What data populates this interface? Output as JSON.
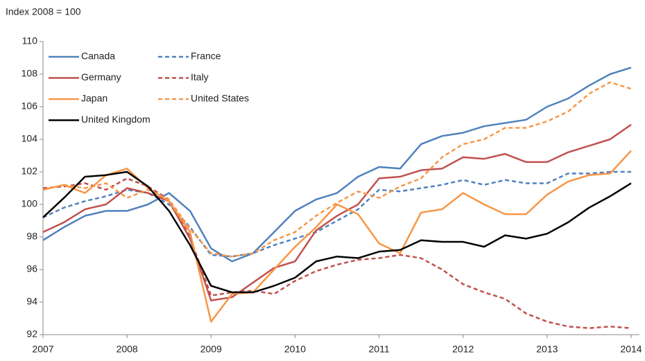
{
  "chart_data": {
    "type": "line",
    "y_label": "Index 2008 = 100",
    "x": [
      2007,
      2007.25,
      2007.5,
      2007.75,
      2008,
      2008.25,
      2008.5,
      2008.75,
      2009,
      2009.25,
      2009.5,
      2009.75,
      2010,
      2010.25,
      2010.5,
      2010.75,
      2011,
      2011.25,
      2011.5,
      2011.75,
      2012,
      2012.25,
      2012.5,
      2012.75,
      2013,
      2013.25,
      2013.5,
      2013.75,
      2014
    ],
    "xlim": [
      2007,
      2014
    ],
    "xticks": [
      2007,
      2008,
      2009,
      2010,
      2011,
      2012,
      2013,
      2014
    ],
    "ylim": [
      92,
      110
    ],
    "yticks": [
      92,
      94,
      96,
      98,
      100,
      102,
      104,
      106,
      108,
      110
    ],
    "grid": false,
    "legend": "top-left",
    "series": [
      {
        "name": "Canada",
        "color": "#4f81bd",
        "dashed": false,
        "values": [
          97.8,
          98.6,
          99.3,
          99.6,
          99.6,
          100.0,
          100.7,
          99.6,
          97.3,
          96.5,
          97.0,
          98.3,
          99.6,
          100.3,
          100.7,
          101.7,
          102.3,
          102.2,
          103.7,
          104.2,
          104.4,
          104.8,
          105.0,
          105.2,
          106.0,
          106.5,
          107.3,
          108.0,
          108.4
        ]
      },
      {
        "name": "France",
        "color": "#4f81bd",
        "dashed": true,
        "values": [
          99.2,
          99.8,
          100.2,
          100.5,
          100.9,
          100.7,
          100.0,
          98.6,
          96.9,
          96.8,
          97.0,
          97.5,
          97.9,
          98.3,
          99.0,
          99.7,
          100.9,
          100.8,
          101.0,
          101.2,
          101.5,
          101.2,
          101.5,
          101.3,
          101.3,
          101.9,
          101.9,
          102.0,
          102.0
        ]
      },
      {
        "name": "Germany",
        "color": "#c0504d",
        "dashed": false,
        "values": [
          98.3,
          98.9,
          99.7,
          100.0,
          101.0,
          100.7,
          100.2,
          97.9,
          94.1,
          94.3,
          95.2,
          96.1,
          96.5,
          98.4,
          99.3,
          100.0,
          101.6,
          101.7,
          102.1,
          102.2,
          102.9,
          102.8,
          103.1,
          102.6,
          102.6,
          103.2,
          103.6,
          104.0,
          104.9
        ]
      },
      {
        "name": "Italy",
        "color": "#c0504d",
        "dashed": true,
        "values": [
          101.0,
          101.1,
          101.3,
          100.9,
          101.6,
          101.1,
          100.3,
          98.0,
          94.4,
          94.6,
          94.7,
          94.5,
          95.3,
          95.9,
          96.3,
          96.6,
          96.7,
          96.9,
          96.7,
          96.0,
          95.1,
          94.6,
          94.2,
          93.3,
          92.8,
          92.5,
          92.4,
          92.5,
          92.4
        ]
      },
      {
        "name": "Japan",
        "color": "#f79646",
        "dashed": false,
        "values": [
          100.9,
          101.2,
          100.7,
          101.8,
          102.2,
          101.0,
          100.2,
          98.3,
          92.8,
          94.5,
          94.6,
          96.0,
          97.4,
          98.6,
          100.0,
          99.4,
          97.6,
          97.0,
          99.5,
          99.7,
          100.7,
          100.0,
          99.4,
          99.4,
          100.6,
          101.4,
          101.8,
          101.9,
          103.3
        ]
      },
      {
        "name": "United States",
        "color": "#f79646",
        "dashed": true,
        "values": [
          100.9,
          101.2,
          101.0,
          101.3,
          100.4,
          100.9,
          100.3,
          98.5,
          97.0,
          96.8,
          97.0,
          97.8,
          98.3,
          99.3,
          100.1,
          100.8,
          100.4,
          101.1,
          101.6,
          102.9,
          103.7,
          104.0,
          104.7,
          104.7,
          105.1,
          105.7,
          106.8,
          107.5,
          107.1
        ]
      },
      {
        "name": "United Kingdom",
        "color": "#000000",
        "dashed": false,
        "values": [
          99.2,
          100.4,
          101.7,
          101.8,
          102.0,
          101.1,
          99.6,
          97.5,
          95.0,
          94.6,
          94.6,
          95.0,
          95.5,
          96.5,
          96.8,
          96.7,
          97.1,
          97.2,
          97.8,
          97.7,
          97.7,
          97.4,
          98.1,
          97.9,
          98.2,
          98.9,
          99.8,
          100.5,
          101.3
        ]
      }
    ]
  }
}
